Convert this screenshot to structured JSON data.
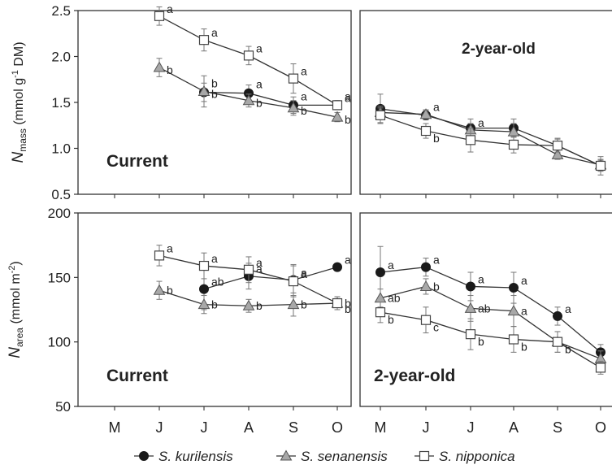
{
  "chart_data": {
    "type": "line",
    "months": [
      "M",
      "J",
      "J",
      "A",
      "S",
      "O"
    ],
    "legend": {
      "placement": "bottom",
      "entries": [
        {
          "label": "S. kurilensis",
          "marker": "filled-circle"
        },
        {
          "label": "S. senanensis",
          "marker": "gray-triangle"
        },
        {
          "label": "S. nipponica",
          "marker": "open-square"
        }
      ]
    },
    "rows": [
      {
        "ylabel_main": "N",
        "ylabel_sub": "mass",
        "ylabel_unit_pre": " (mmol  g",
        "ylabel_unit_sup": "-1",
        "ylabel_unit_post": " DM)",
        "ylim": [
          0.5,
          2.5
        ],
        "yticks": [
          "0.5",
          "1.0",
          "1.5",
          "2.0",
          "2.5"
        ]
      },
      {
        "ylabel_main": "N",
        "ylabel_sub": "area",
        "ylabel_unit_pre": " (mmol  m",
        "ylabel_unit_sup": "-2",
        "ylabel_unit_post": ")",
        "ylim": [
          50,
          200
        ],
        "yticks": [
          "50",
          "100",
          "150",
          "200"
        ]
      }
    ],
    "panels": [
      {
        "row": 0,
        "col": 0,
        "label": "Current",
        "series": [
          {
            "species": "S. kurilensis",
            "values": [
              null,
              null,
              1.61,
              1.6,
              1.47,
              1.47
            ],
            "errors": [
              null,
              null,
              0.1,
              0.09,
              0.09,
              0.05
            ],
            "letters": [
              null,
              null,
              "b",
              "a",
              "a",
              "a"
            ]
          },
          {
            "species": "S. senanensis",
            "values": [
              null,
              1.88,
              1.62,
              1.52,
              1.44,
              1.34
            ],
            "errors": [
              null,
              0.1,
              0.17,
              0.07,
              0.08,
              0.05
            ],
            "letters": [
              null,
              "b",
              "b",
              "b",
              "b",
              "b"
            ]
          },
          {
            "species": "S. nipponica",
            "values": [
              null,
              2.44,
              2.18,
              2.01,
              1.76,
              1.47
            ],
            "errors": [
              null,
              0.1,
              0.12,
              0.1,
              0.16,
              0.05
            ],
            "letters": [
              null,
              "a",
              "a",
              "a",
              "a",
              "a"
            ]
          }
        ]
      },
      {
        "row": 0,
        "col": 1,
        "label": "2-year-old",
        "series": [
          {
            "species": "S. kurilensis",
            "values": [
              1.43,
              1.36,
              1.22,
              1.22,
              1.03,
              0.81
            ],
            "errors": [
              0.16,
              0.05,
              0.1,
              0.1,
              0.08,
              0.06
            ],
            "letters": [
              null,
              null,
              null,
              null,
              null,
              null
            ]
          },
          {
            "species": "S. senanensis",
            "values": [
              1.39,
              1.37,
              1.2,
              1.18,
              0.93,
              0.82
            ],
            "errors": [
              0.07,
              0.05,
              0.07,
              0.09,
              0.05,
              0.06
            ],
            "letters": [
              null,
              "a",
              "a",
              null,
              null,
              null
            ]
          },
          {
            "species": "S. nipponica",
            "values": [
              1.36,
              1.19,
              1.09,
              1.04,
              1.03,
              0.81
            ],
            "errors": [
              0.08,
              0.08,
              0.13,
              0.09,
              0.07,
              0.1
            ],
            "letters": [
              null,
              "b",
              null,
              null,
              null,
              null
            ]
          }
        ]
      },
      {
        "row": 1,
        "col": 0,
        "label": "Current",
        "series": [
          {
            "species": "S. kurilensis",
            "values": [
              null,
              null,
              141,
              151,
              148,
              158
            ],
            "errors": [
              null,
              null,
              16,
              10,
              12,
              3
            ],
            "letters": [
              null,
              null,
              "ab",
              "a",
              "a",
              "a"
            ]
          },
          {
            "species": "S. senanensis",
            "values": [
              null,
              140,
              129,
              128,
              129,
              130
            ],
            "errors": [
              null,
              7,
              7,
              5,
              9,
              5
            ],
            "letters": [
              null,
              "b",
              "b",
              "b",
              "b",
              "b"
            ]
          },
          {
            "species": "S. nipponica",
            "values": [
              null,
              167,
              159,
              156,
              147,
              130
            ],
            "errors": [
              null,
              8,
              10,
              10,
              12,
              5
            ],
            "letters": [
              null,
              "a",
              "a",
              "a",
              "a",
              "b"
            ]
          }
        ]
      },
      {
        "row": 1,
        "col": 1,
        "label": "2-year-old",
        "series": [
          {
            "species": "S. kurilensis",
            "values": [
              154,
              158,
              143,
              142,
              120,
              92
            ],
            "errors": [
              20,
              7,
              11,
              12,
              7,
              6
            ],
            "letters": [
              "a",
              "a",
              "a",
              "a",
              "a",
              null
            ]
          },
          {
            "species": "S. senanensis",
            "values": [
              134,
              143,
              126,
              124,
              100,
              87
            ],
            "errors": [
              7,
              6,
              10,
              12,
              8,
              6
            ],
            "letters": [
              "ab",
              "b",
              "ab",
              "a",
              null,
              null
            ]
          },
          {
            "species": "S. nipponica",
            "values": [
              123,
              117,
              106,
              102,
              100,
              80
            ],
            "errors": [
              8,
              10,
              12,
              10,
              8,
              5
            ],
            "letters": [
              "b",
              "c",
              "b",
              "b",
              "b",
              null
            ]
          }
        ]
      }
    ]
  }
}
